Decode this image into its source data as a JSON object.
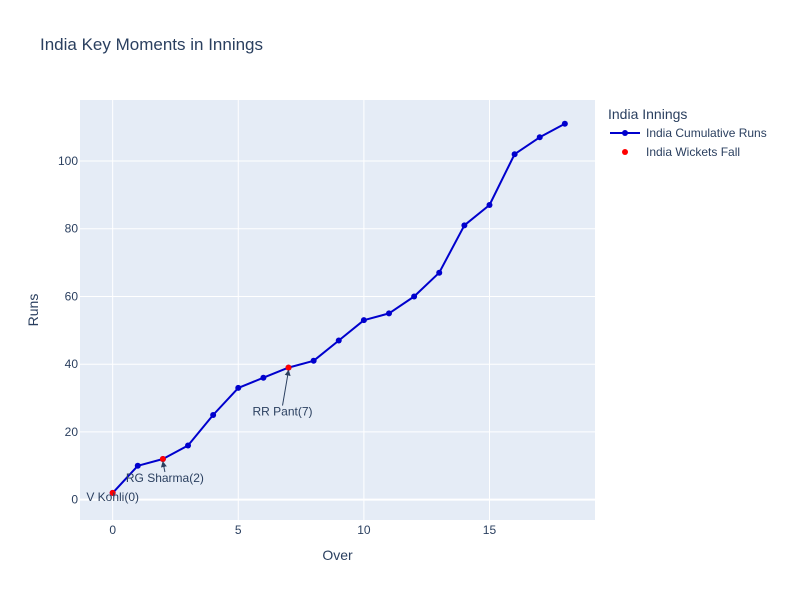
{
  "chart_data": {
    "type": "line",
    "title": "India Key Moments in Innings",
    "xlabel": "Over",
    "ylabel": "Runs",
    "xlim": [
      -1.3,
      19.2
    ],
    "ylim": [
      -6,
      118
    ],
    "xticks": [
      0,
      5,
      10,
      15
    ],
    "yticks": [
      0,
      20,
      40,
      60,
      80,
      100
    ],
    "grid": true,
    "legend": {
      "title": "India Innings",
      "position": "top-right"
    },
    "colors": {
      "runs": "#0000cd",
      "wickets": "#ff0000",
      "plot_bg": "#e5ecf6",
      "grid": "#ffffff",
      "text": "#2a3f5f"
    },
    "series": [
      {
        "name": "India Cumulative Runs",
        "mode": "lines+markers",
        "x": [
          0,
          1,
          2,
          3,
          4,
          5,
          6,
          7,
          8,
          9,
          10,
          11,
          12,
          13,
          14,
          15,
          16,
          17,
          18
        ],
        "y": [
          2,
          10,
          12,
          16,
          25,
          33,
          36,
          39,
          41,
          47,
          53,
          55,
          60,
          67,
          81,
          87,
          102,
          107,
          111
        ]
      },
      {
        "name": "India Wickets Fall",
        "mode": "markers",
        "x": [
          0,
          2,
          7
        ],
        "y": [
          2,
          12,
          39
        ]
      }
    ],
    "annotations": [
      {
        "text": "V Kohli(0)",
        "x": 0,
        "y": 2
      },
      {
        "text": "RG Sharma(2)",
        "x": 2,
        "y": 12
      },
      {
        "text": "RR Pant(7)",
        "x": 7,
        "y": 39
      }
    ]
  }
}
